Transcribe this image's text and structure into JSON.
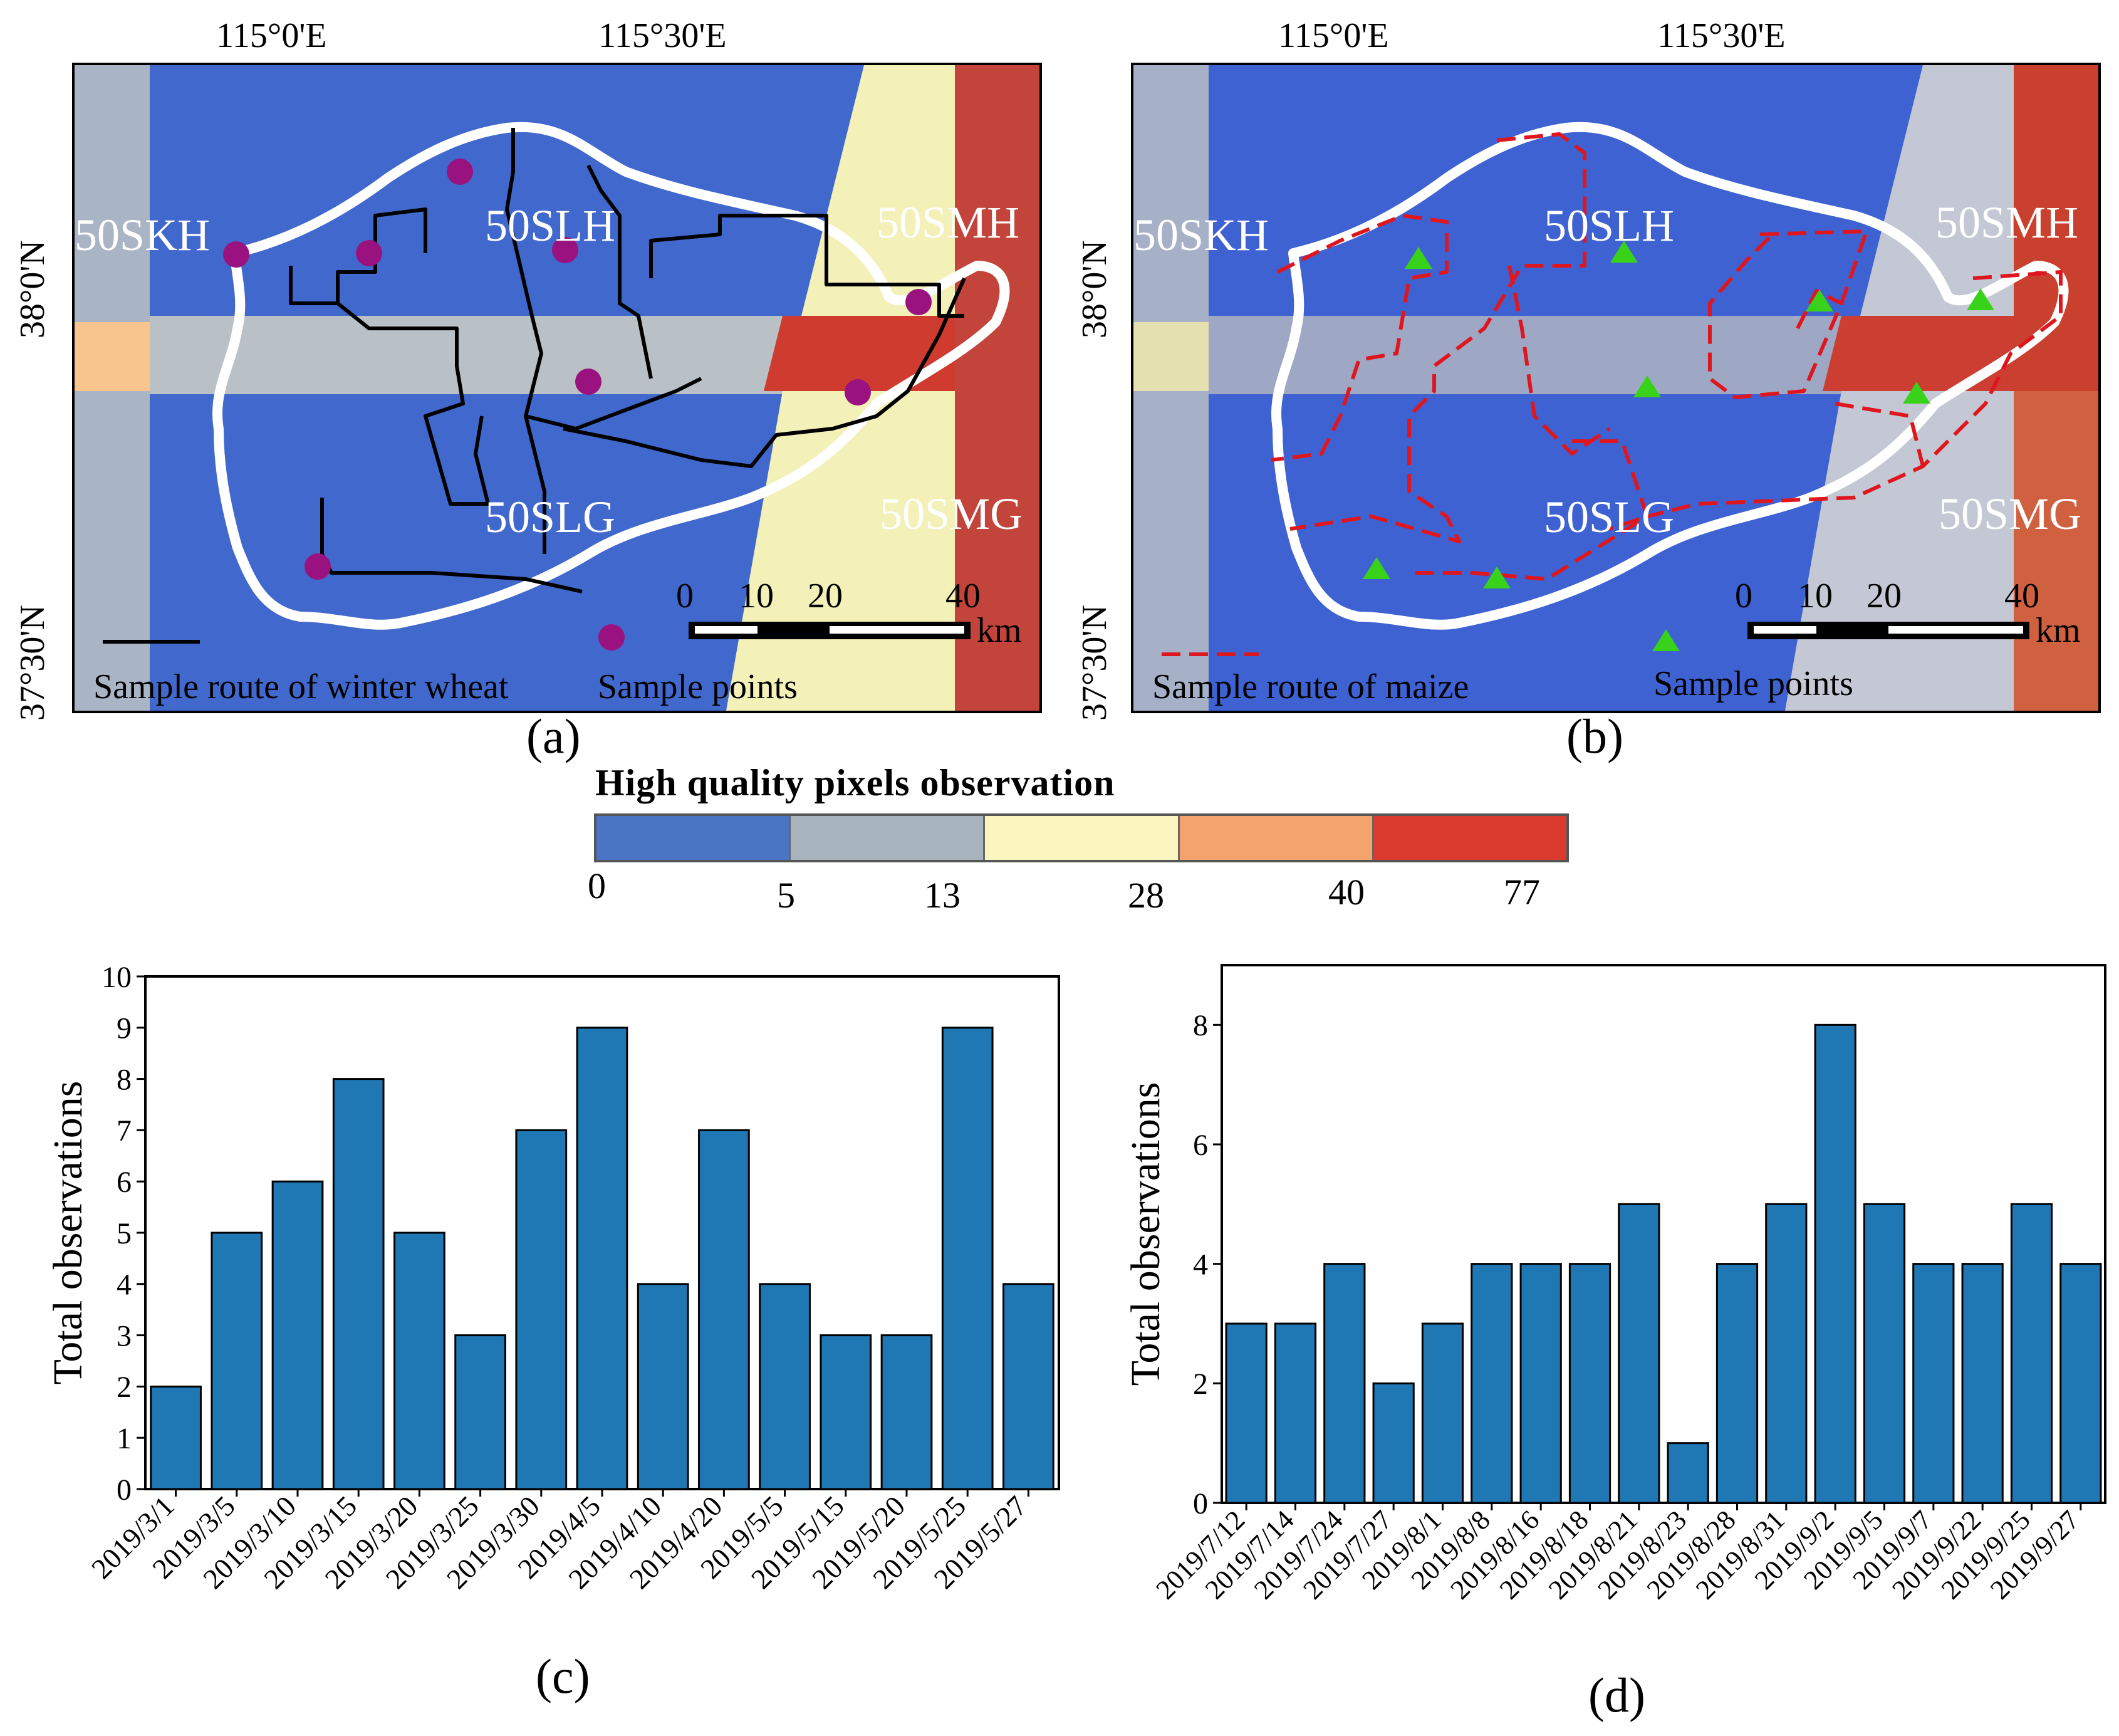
{
  "map_a": {
    "panel_label": "(a)",
    "lon_labels": [
      "115°0'E",
      "115°30'E"
    ],
    "lat_labels": [
      "38°0'N",
      "37°30'N"
    ],
    "tile_labels": [
      "50SKH",
      "50SLH",
      "50SMH",
      "50SLG",
      "50SMG"
    ],
    "scale_numbers": [
      "0",
      "10",
      "20",
      "40"
    ],
    "scale_unit": "km",
    "route_legend": "Sample route of winter wheat",
    "points_legend": "Sample points",
    "route_color": "#000000",
    "point_color": "#9a127f"
  },
  "map_b": {
    "panel_label": "(b)",
    "lon_labels": [
      "115°0'E",
      "115°30'E"
    ],
    "lat_labels": [
      "38°0'N",
      "37°30'N"
    ],
    "tile_labels": [
      "50SKH",
      "50SLH",
      "50SMH",
      "50SLG",
      "50SMG"
    ],
    "scale_numbers": [
      "0",
      "10",
      "20",
      "40"
    ],
    "scale_unit": "km",
    "route_legend": "Sample route of maize",
    "points_legend": "Sample points",
    "route_color": "#e0161e",
    "point_color": "#39d21b"
  },
  "legend": {
    "title": "High quality pixels observation",
    "ticks": [
      "0",
      "5",
      "13",
      "28",
      "40",
      "77"
    ],
    "colors": [
      "#4a74c4",
      "#a7b4bd",
      "#fbf6bf",
      "#f4a26e",
      "#da3a2d"
    ]
  },
  "chart_data": [
    {
      "type": "bar",
      "panel_label": "(c)",
      "ylabel": "Total observations",
      "categories": [
        "2019/3/1",
        "2019/3/5",
        "2019/3/10",
        "2019/3/15",
        "2019/3/20",
        "2019/3/25",
        "2019/3/30",
        "2019/4/5",
        "2019/4/10",
        "2019/4/20",
        "2019/5/5",
        "2019/5/15",
        "2019/5/20",
        "2019/5/25",
        "2019/5/27"
      ],
      "values": [
        2,
        5,
        6,
        8,
        5,
        3,
        7,
        9,
        4,
        7,
        4,
        3,
        3,
        9,
        4
      ],
      "ylim": [
        0,
        10
      ],
      "yticks": [
        "0",
        "1",
        "2",
        "3",
        "4",
        "5",
        "6",
        "7",
        "8",
        "9",
        "10"
      ],
      "bar_color": "#1f77b4",
      "grid": false
    },
    {
      "type": "bar",
      "panel_label": "(d)",
      "ylabel": "Total observations",
      "categories": [
        "2019/7/12",
        "2019/7/14",
        "2019/7/24",
        "2019/7/27",
        "2019/8/1",
        "2019/8/8",
        "2019/8/16",
        "2019/8/18",
        "2019/8/21",
        "2019/8/23",
        "2019/8/28",
        "2019/8/31",
        "2019/9/2",
        "2019/9/5",
        "2019/9/7",
        "2019/9/22",
        "2019/9/25",
        "2019/9/27"
      ],
      "values": [
        3,
        3,
        4,
        2,
        3,
        4,
        4,
        4,
        5,
        1,
        4,
        5,
        8,
        5,
        4,
        4,
        5,
        4
      ],
      "ylim": [
        0,
        9
      ],
      "yticks": [
        "0",
        "2",
        "4",
        "6",
        "8"
      ],
      "bar_color": "#1f77b4",
      "grid": false
    }
  ]
}
